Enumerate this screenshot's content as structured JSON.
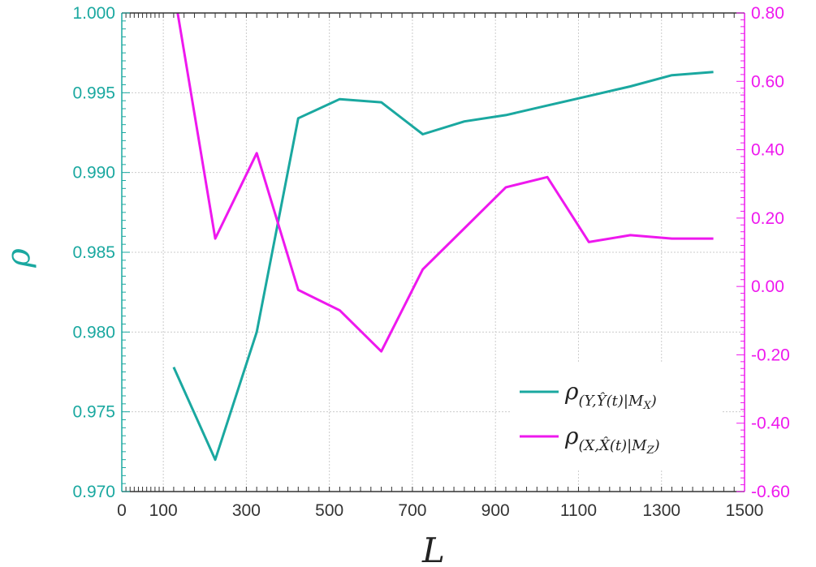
{
  "chart_data": {
    "type": "line",
    "xlabel": "L",
    "ylabel_left": "ρ",
    "ylabel_right": "",
    "xlim": [
      0,
      1500
    ],
    "ylim_left": [
      0.97,
      1.0
    ],
    "ylim_right": [
      -0.6,
      0.8
    ],
    "x_ticks": [
      "0",
      "100",
      "300",
      "500",
      "700",
      "900",
      "1100",
      "1300",
      "1500"
    ],
    "y_left_ticks": [
      "0.970",
      "0.975",
      "0.980",
      "0.985",
      "0.990",
      "0.995",
      "1.000"
    ],
    "y_right_ticks": [
      "-0.60",
      "-0.40",
      "-0.20",
      "0.00",
      "0.20",
      "0.40",
      "0.60",
      "0.80"
    ],
    "grid": true,
    "legend_position": "bottom-right",
    "series": [
      {
        "name": "ρ(Y,Ŷ(t)|MX)",
        "axis": "left",
        "color": "#1aa8a0",
        "x": [
          125,
          225,
          325,
          425,
          525,
          625,
          725,
          825,
          925,
          1025,
          1125,
          1225,
          1325,
          1425
        ],
        "y": [
          0.9778,
          0.972,
          0.98,
          0.9934,
          0.9946,
          0.9944,
          0.9924,
          0.9932,
          0.9936,
          0.9942,
          0.9948,
          0.9954,
          0.9961,
          0.9963
        ]
      },
      {
        "name": "ρ(X,X̂(t)|MZ)",
        "axis": "right",
        "color": "#ee18ee",
        "x": [
          125,
          225,
          325,
          425,
          525,
          625,
          725,
          825,
          925,
          1025,
          1125,
          1225,
          1325,
          1425
        ],
        "y": [
          0.87,
          0.14,
          0.39,
          -0.01,
          -0.07,
          -0.19,
          0.05,
          0.17,
          0.29,
          0.32,
          0.13,
          0.15,
          0.14,
          0.14
        ]
      }
    ],
    "colors": {
      "left_axis": "#1aa8a0",
      "right_axis": "#ee18ee",
      "bottom_axis": "#333333",
      "grid": "#cccccc"
    }
  }
}
